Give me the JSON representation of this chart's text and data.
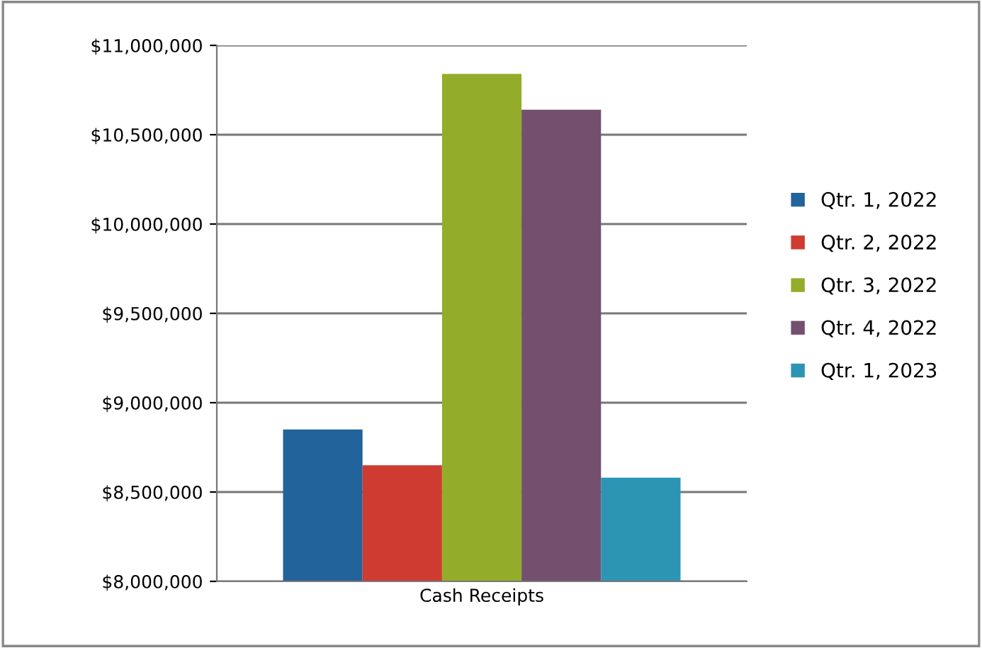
{
  "chart_data": {
    "type": "bar",
    "categories": [
      "Cash Receipts"
    ],
    "series": [
      {
        "name": "Qtr. 1, 2022",
        "color": "#23639b",
        "values": [
          8850000
        ]
      },
      {
        "name": "Qtr. 2, 2022",
        "color": "#cf3b30",
        "values": [
          8650000
        ]
      },
      {
        "name": "Qtr. 3, 2022",
        "color": "#93ad2a",
        "values": [
          10840000
        ]
      },
      {
        "name": "Qtr. 4, 2022",
        "color": "#74506e",
        "values": [
          10640000
        ]
      },
      {
        "name": "Qtr. 1, 2023",
        "color": "#2d95b4",
        "values": [
          8580000
        ]
      }
    ],
    "ylim": [
      8000000,
      11000000
    ],
    "yticks": [
      {
        "value": 8000000,
        "label": "$8,000,000"
      },
      {
        "value": 8500000,
        "label": "$8,500,000"
      },
      {
        "value": 9000000,
        "label": "$9,000,000"
      },
      {
        "value": 9500000,
        "label": "$9,500,000"
      },
      {
        "value": 10000000,
        "label": "$10,000,000"
      },
      {
        "value": 10500000,
        "label": "$10,500,000"
      },
      {
        "value": 11000000,
        "label": "$11,000,000"
      }
    ],
    "grid": "y",
    "legend": "right"
  }
}
